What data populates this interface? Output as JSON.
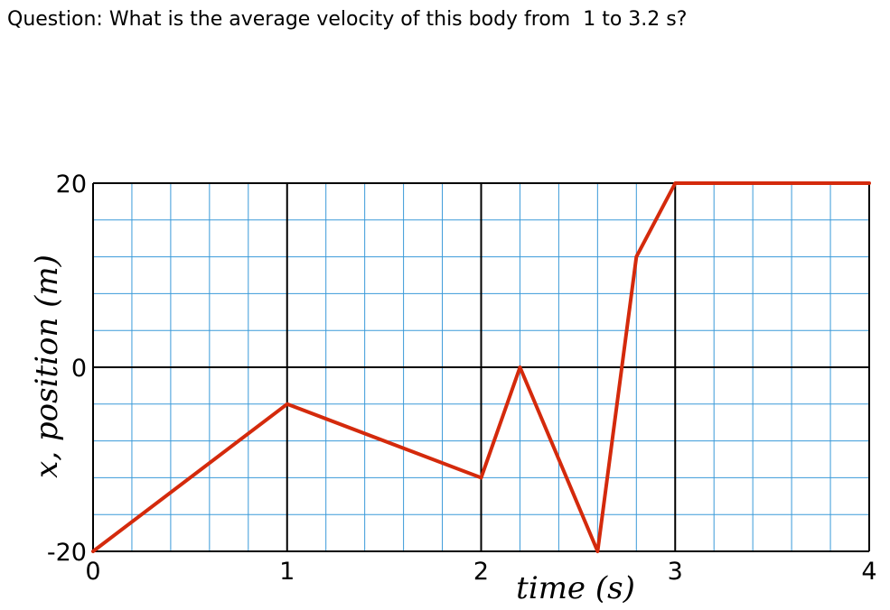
{
  "question": {
    "label": "Question:",
    "text": "What is the average velocity of this body from  1 to 3.2 s?"
  },
  "colors": {
    "minor_grid": "#3a9ad9",
    "major_grid": "#000000",
    "line": "#d42a0c",
    "background": "#ffffff"
  },
  "chart_data": {
    "type": "line",
    "title": "",
    "xlabel": "time (s)",
    "ylabel": "x, position (m)",
    "xlim": [
      0,
      4
    ],
    "ylim": [
      -20,
      20
    ],
    "xticks": [
      0,
      1,
      2,
      3,
      4
    ],
    "yticks": [
      -20,
      0,
      20
    ],
    "xtick_labels": [
      "0",
      "1",
      "2",
      "3",
      "4"
    ],
    "ytick_labels": [
      "-20",
      "0",
      "20"
    ],
    "minor_x_step": 0.2,
    "minor_y_step": 4,
    "grid": true,
    "series": [
      {
        "x": [
          0,
          1,
          2,
          2.2,
          2.6,
          2.8,
          3,
          4
        ],
        "y": [
          -20,
          -4,
          -12,
          0,
          -20,
          12,
          20,
          20
        ]
      }
    ]
  }
}
